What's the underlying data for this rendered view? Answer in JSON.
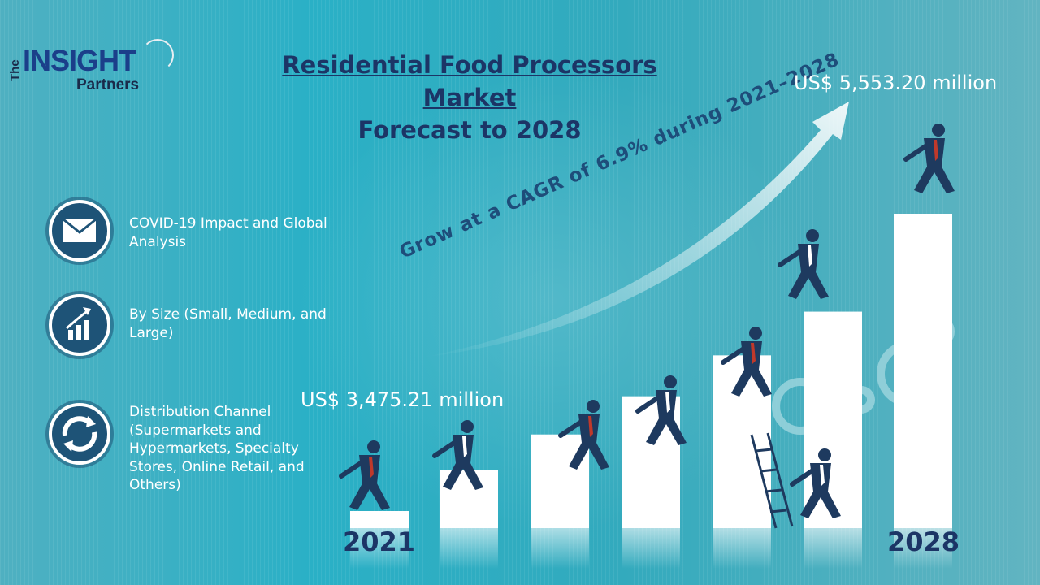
{
  "logo": {
    "the": "The",
    "insight": "INSIGHT",
    "partners": "Partners"
  },
  "title": {
    "line1": "Residential Food Processors Market",
    "line2": "Forecast to 2028"
  },
  "features": [
    {
      "icon": "envelope-icon",
      "text": "COVID-19 Impact and Global Analysis"
    },
    {
      "icon": "growth-chart-icon",
      "text": "By Size (Small, Medium, and Large)"
    },
    {
      "icon": "recycle-arrows-icon",
      "text": "Distribution Channel (Supermarkets and Hypermarkets, Specialty Stores, Online Retail, and Others)"
    }
  ],
  "cagr_text": "Grow at a CAGR of 6.9% during 2021–2028",
  "chart_data": {
    "type": "bar",
    "categories": [
      "2021",
      "",
      "",
      "",
      "",
      "",
      "2028"
    ],
    "values": [
      3475.21,
      3714.9,
      3971.2,
      4245.2,
      4538.1,
      4851.2,
      5553.2
    ],
    "start_label": "US$ 3,475.21 million",
    "end_label": "US$ 5,553.20 million",
    "start_year": "2021",
    "end_year": "2028",
    "accent": "#ffffff",
    "figure_color": "#1e3a5f",
    "tie_color": "#c0392b"
  }
}
